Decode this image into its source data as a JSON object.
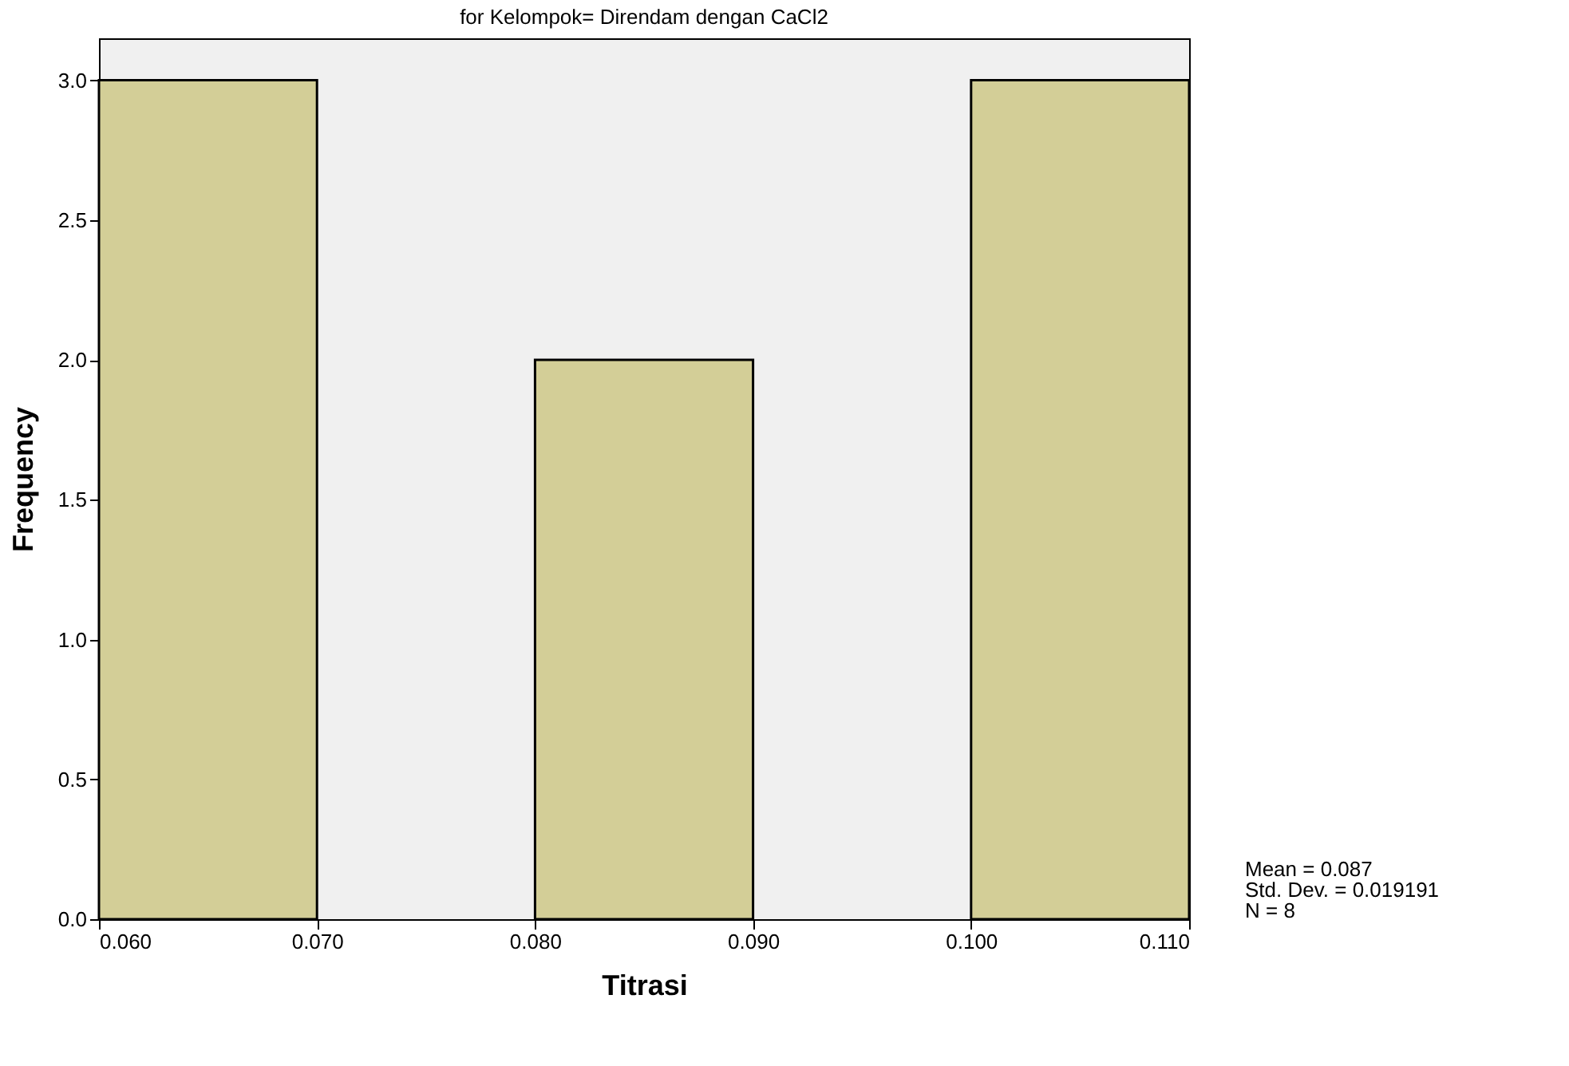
{
  "chart_data": {
    "type": "histogram",
    "title": "for Kelompok= Direndam dengan CaCl2",
    "xlabel": "Titrasi",
    "ylabel": "Frequency",
    "bins": [
      0.06,
      0.07,
      0.08,
      0.09,
      0.1,
      0.11
    ],
    "values": [
      3,
      0,
      2,
      0,
      3
    ],
    "color": "#d3ce97",
    "xlim": [
      0.06,
      0.11
    ],
    "xticks": [
      {
        "value": 0.06,
        "label": "0.060"
      },
      {
        "value": 0.07,
        "label": "0.070"
      },
      {
        "value": 0.08,
        "label": "0.080"
      },
      {
        "value": 0.09,
        "label": "0.090"
      },
      {
        "value": 0.1,
        "label": "0.100"
      },
      {
        "value": 0.11,
        "label": "0.110"
      }
    ],
    "ylim": [
      0,
      3.15
    ],
    "yticks": [
      {
        "value": 0,
        "label": "0.0"
      },
      {
        "value": 0.5,
        "label": "0.5"
      },
      {
        "value": 1,
        "label": "1.0"
      },
      {
        "value": 1.5,
        "label": "1.5"
      },
      {
        "value": 2,
        "label": "2.0"
      },
      {
        "value": 2.5,
        "label": "2.5"
      },
      {
        "value": 3,
        "label": "3.0"
      }
    ],
    "grid": false,
    "annotations": [
      "Mean = 0.087",
      "Std. Dev. = 0.019191",
      "N = 8"
    ]
  }
}
